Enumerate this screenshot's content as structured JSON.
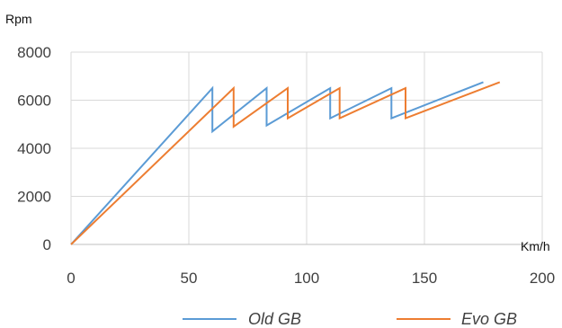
{
  "chart_data": {
    "type": "line",
    "ylabel": "Rpm",
    "xlabel": "Km/h",
    "xlim": [
      0,
      200
    ],
    "ylim": [
      0,
      8000
    ],
    "xticks": [
      0,
      50,
      100,
      150,
      200
    ],
    "yticks": [
      0,
      2000,
      4000,
      6000,
      8000
    ],
    "grid": true,
    "legend_position": "bottom",
    "series": [
      {
        "name": "Old GB",
        "color": "#5B9BD5",
        "points": [
          [
            0,
            0
          ],
          [
            60,
            6500
          ],
          [
            60,
            4700
          ],
          [
            83,
            6500
          ],
          [
            83,
            4950
          ],
          [
            110,
            6500
          ],
          [
            110,
            5250
          ],
          [
            136,
            6500
          ],
          [
            136,
            5250
          ],
          [
            175,
            6750
          ]
        ]
      },
      {
        "name": "Evo GB",
        "color": "#ED7D31",
        "points": [
          [
            0,
            0
          ],
          [
            69,
            6500
          ],
          [
            69,
            4900
          ],
          [
            92,
            6500
          ],
          [
            92,
            5250
          ],
          [
            114,
            6500
          ],
          [
            114,
            5250
          ],
          [
            142,
            6500
          ],
          [
            142,
            5250
          ],
          [
            182,
            6750
          ]
        ]
      }
    ]
  }
}
